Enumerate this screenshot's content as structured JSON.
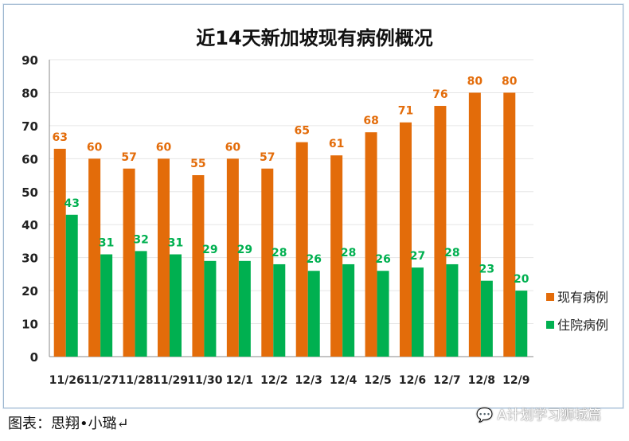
{
  "chart_data": {
    "type": "bar",
    "title": "近14天新加坡现有病例概况",
    "categories": [
      "11/26",
      "11/27",
      "11/28",
      "11/29",
      "11/30",
      "12/1",
      "12/2",
      "12/3",
      "12/4",
      "12/5",
      "12/6",
      "12/7",
      "12/8",
      "12/9"
    ],
    "series": [
      {
        "name": "现有病例",
        "color": "#e36c0a",
        "values": [
          63,
          60,
          57,
          60,
          55,
          60,
          57,
          65,
          61,
          68,
          71,
          76,
          80,
          80
        ]
      },
      {
        "name": "住院病例",
        "color": "#00b050",
        "values": [
          43,
          31,
          32,
          31,
          29,
          29,
          28,
          26,
          28,
          26,
          27,
          28,
          23,
          20
        ]
      }
    ],
    "ylim": [
      0,
      90
    ],
    "yticks": [
      0,
      10,
      20,
      30,
      40,
      50,
      60,
      70,
      80,
      90
    ],
    "grid": true,
    "legend": "right",
    "xlabel": "",
    "ylabel": ""
  },
  "caption": "图表：思翔•小璐↵",
  "watermark": "A计划学习狮城篇"
}
